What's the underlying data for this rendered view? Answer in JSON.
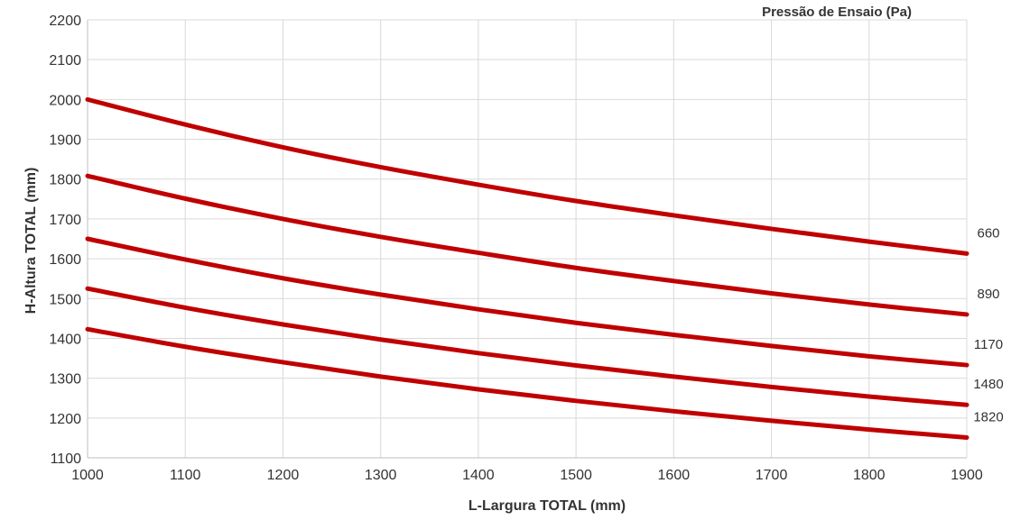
{
  "chart_data": {
    "type": "line",
    "xlabel": "L-Largura TOTAL (mm)",
    "ylabel": "H-Altura TOTAL (mm)",
    "legend_title": "Pressão de Ensaio (Pa)",
    "xlim": [
      1000,
      1900
    ],
    "ylim": [
      1100,
      2200
    ],
    "x_ticks": [
      "1000",
      "1100",
      "1200",
      "1300",
      "1400",
      "1500",
      "1600",
      "1700",
      "1800",
      "1900"
    ],
    "y_ticks": [
      "1100",
      "1200",
      "1300",
      "1400",
      "1500",
      "1600",
      "1700",
      "1800",
      "1900",
      "2000",
      "2100",
      "2200"
    ],
    "grid": true,
    "line_color": "#c00000",
    "x": [
      1000,
      1100,
      1200,
      1300,
      1400,
      1500,
      1600,
      1700,
      1800,
      1900
    ],
    "series": [
      {
        "name": "660",
        "values": [
          2000,
          1937,
          1880,
          1830,
          1786,
          1745,
          1709,
          1675,
          1643,
          1613
        ]
      },
      {
        "name": "890",
        "values": [
          1808,
          1751,
          1700,
          1655,
          1615,
          1577,
          1544,
          1513,
          1485,
          1460
        ]
      },
      {
        "name": "1170",
        "values": [
          1650,
          1598,
          1551,
          1510,
          1473,
          1439,
          1409,
          1381,
          1355,
          1333
        ]
      },
      {
        "name": "1480",
        "values": [
          1525,
          1477,
          1435,
          1397,
          1363,
          1332,
          1304,
          1278,
          1254,
          1233
        ]
      },
      {
        "name": "1820",
        "values": [
          1423,
          1379,
          1340,
          1304,
          1272,
          1243,
          1217,
          1193,
          1171,
          1151
        ]
      }
    ]
  }
}
